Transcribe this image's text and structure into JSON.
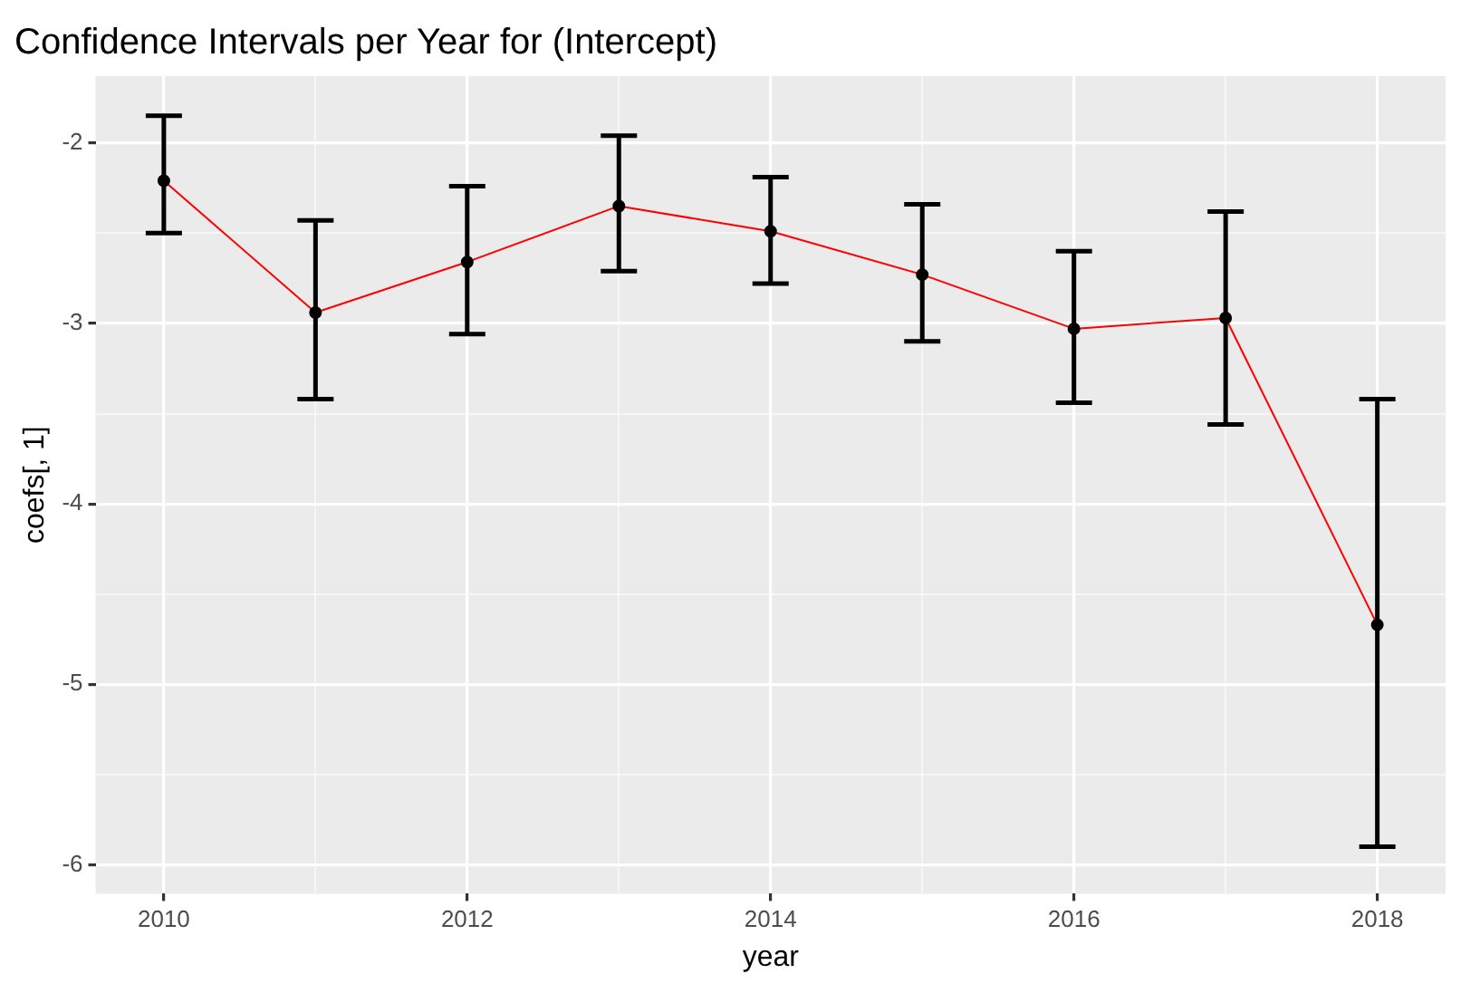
{
  "chart_data": {
    "type": "line",
    "title": "Confidence Intervals per Year for (Intercept)",
    "xlabel": "year",
    "ylabel": "coefs[, 1]",
    "x": [
      2010,
      2011,
      2012,
      2013,
      2014,
      2015,
      2016,
      2017,
      2018
    ],
    "series": [
      {
        "color": "#ff0000",
        "values": [
          -2.21,
          -2.94,
          -2.66,
          -2.35,
          -2.49,
          -2.73,
          -3.03,
          -2.97,
          -4.67
        ],
        "errors": [
          [
            -2.5,
            -1.85
          ],
          [
            -3.42,
            -2.43
          ],
          [
            -3.06,
            -2.24
          ],
          [
            -2.71,
            -1.96
          ],
          [
            -2.78,
            -2.19
          ],
          [
            -3.1,
            -2.34
          ],
          [
            -3.44,
            -2.6
          ],
          [
            -3.56,
            -2.38
          ],
          [
            -5.9,
            -3.42
          ]
        ]
      }
    ],
    "marker": "circle",
    "grid": true,
    "legend": false,
    "xlim": [
      2009.55,
      2018.45
    ],
    "xticks": [
      2010,
      {
        "value": 2011,
        "label": null
      },
      2012,
      {
        "value": 2013,
        "label": null
      },
      2014,
      {
        "value": 2015,
        "label": null
      },
      2016,
      {
        "value": 2017,
        "label": null
      },
      2018
    ],
    "ylim": [
      -6.16,
      -1.63
    ],
    "yticks": [
      -6,
      {
        "value": -5.5,
        "label": null
      },
      -5,
      {
        "value": -4.5,
        "label": null
      },
      -4,
      {
        "value": -3.5,
        "label": null
      },
      -3,
      {
        "value": -2.5,
        "label": null
      },
      -2
    ]
  }
}
